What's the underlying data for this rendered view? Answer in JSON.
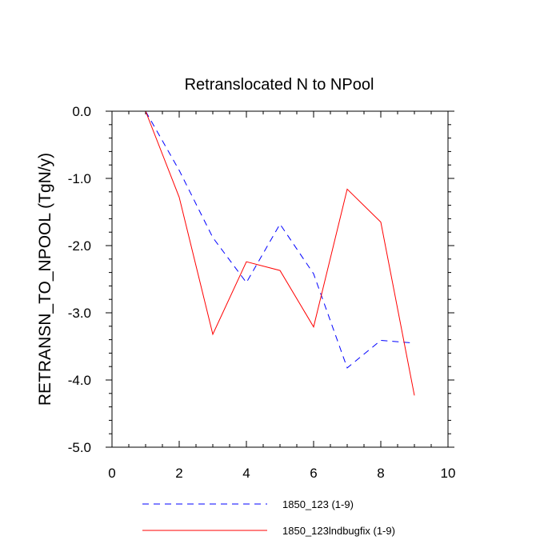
{
  "chart_data": {
    "type": "line",
    "title": "Retranslocated N to NPool",
    "xlabel": "",
    "ylabel": "RETRANSN_TO_NPOOL  (TgN/y)",
    "xlim": [
      0,
      10
    ],
    "ylim": [
      -5.0,
      0.0
    ],
    "x_ticks": [
      0,
      2,
      4,
      6,
      8,
      10
    ],
    "x_tick_labels": [
      "0",
      "2",
      "4",
      "6",
      "8",
      "10"
    ],
    "y_ticks": [
      0.0,
      -1.0,
      -2.0,
      -3.0,
      -4.0,
      -5.0
    ],
    "y_tick_labels": [
      "0.0",
      "-1.0",
      "-2.0",
      "-3.0",
      "-4.0",
      "-5.0"
    ],
    "grid": false,
    "legend_position": "bottom",
    "x": [
      1,
      2,
      3,
      4,
      5,
      6,
      7,
      8,
      9
    ],
    "series": [
      {
        "name": "1850_123 (1-9)",
        "color": "#0000ff",
        "style": "dashed",
        "values": [
          0.0,
          -0.88,
          -1.88,
          -2.55,
          -1.68,
          -2.42,
          -3.82,
          -3.41,
          -3.45
        ]
      },
      {
        "name": "1850_123lndbugfix (1-9)",
        "color": "#ff0000",
        "style": "solid",
        "values": [
          0.0,
          -1.28,
          -3.32,
          -2.24,
          -2.37,
          -3.21,
          -1.16,
          -1.65,
          -4.23
        ]
      }
    ]
  }
}
